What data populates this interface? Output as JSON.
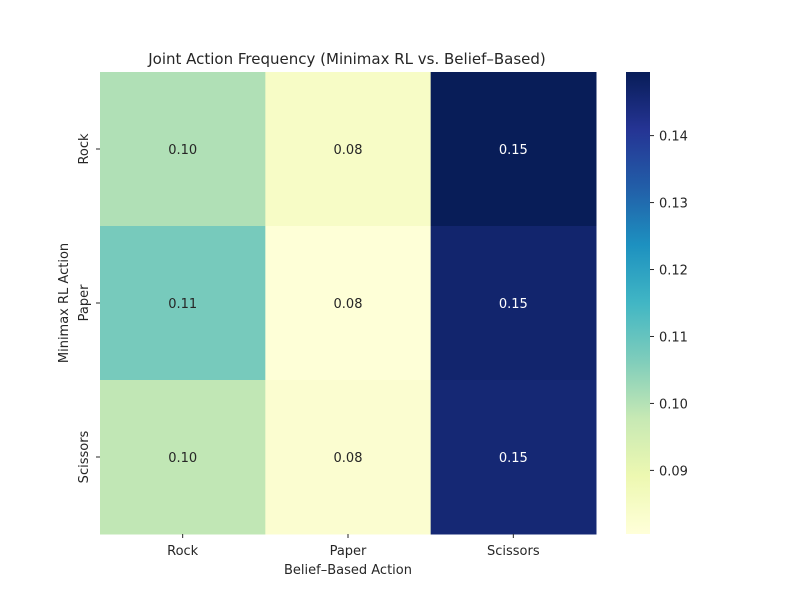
{
  "chart_data": {
    "type": "heatmap",
    "title": "Joint Action Frequency (Minimax RL vs. Belief–Based)",
    "xlabel": "Belief–Based Action",
    "ylabel": "Minimax RL Action",
    "x_categories": [
      "Rock",
      "Paper",
      "Scissors"
    ],
    "y_categories": [
      "Rock",
      "Paper",
      "Scissors"
    ],
    "values": [
      [
        0.1,
        0.08,
        0.15
      ],
      [
        0.11,
        0.08,
        0.15
      ],
      [
        0.1,
        0.08,
        0.15
      ]
    ],
    "true_values": [
      [
        0.1005,
        0.0845,
        0.1495
      ],
      [
        0.1075,
        0.081,
        0.1465
      ],
      [
        0.0985,
        0.0825,
        0.1455
      ]
    ],
    "colormap": "YlGnBu",
    "color_range": [
      0.0805,
      0.1495
    ],
    "colorbar_ticks": [
      "0.09",
      "0.10",
      "0.11",
      "0.12",
      "0.13",
      "0.14"
    ],
    "grid": false,
    "legend": "colorbar-right"
  }
}
